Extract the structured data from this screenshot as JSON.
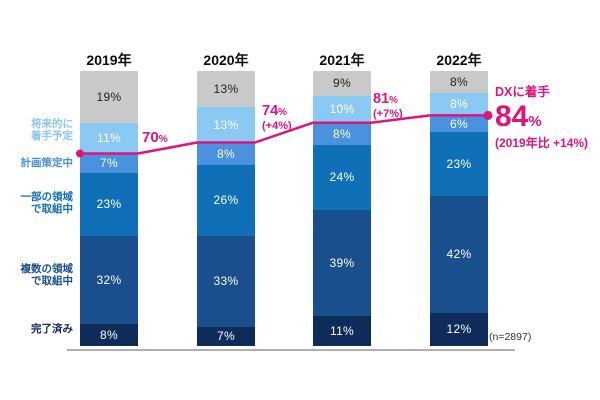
{
  "chart_data": {
    "type": "bar",
    "stacked": true,
    "categories": [
      "2019年",
      "2020年",
      "2021年",
      "2022年"
    ],
    "unit": "%",
    "ylim": [
      0,
      100
    ],
    "grid": false,
    "series_order": "top-to-bottom",
    "series": [
      {
        "name": "",
        "values": [
          19,
          13,
          9,
          8
        ]
      },
      {
        "name": "将来的に着手予定",
        "values": [
          11,
          13,
          10,
          8
        ]
      },
      {
        "name": "計画策定中",
        "values": [
          7,
          8,
          8,
          6
        ]
      },
      {
        "name": "一部の領域で取組中",
        "values": [
          23,
          26,
          24,
          23
        ]
      },
      {
        "name": "複数の領域で取組中",
        "values": [
          32,
          33,
          39,
          42
        ]
      },
      {
        "name": "完了済み",
        "values": [
          8,
          7,
          11,
          12
        ]
      }
    ],
    "line_series": {
      "name": "DXに着手",
      "values": [
        70,
        74,
        81,
        84
      ]
    },
    "sample_note": "(n=2897)"
  },
  "colors": {
    "segments": [
      "#c9c9c9",
      "#89c9f3",
      "#4a92e0",
      "#0f70b8",
      "#1a4f8e",
      "#0e2b59"
    ],
    "accent_pink": "#e0127c",
    "axis": "#b0b0b0",
    "label_colors": [
      "#8ac7f0",
      "#4a92e0",
      "#0f70b8",
      "#1a4f8e",
      "#0e2b59"
    ]
  },
  "left_labels": [
    {
      "lines": [
        "将来的に",
        "着手予定"
      ]
    },
    {
      "lines": [
        "計画策定中",
        ""
      ]
    },
    {
      "lines": [
        "一部の領域",
        "で取組中"
      ]
    },
    {
      "lines": [
        "複数の領域",
        "で取組中"
      ]
    },
    {
      "lines": [
        "完了済み",
        ""
      ]
    }
  ],
  "annotations": {
    "y2019": {
      "num": "70",
      "pct": "%"
    },
    "y2020": {
      "num": "74",
      "pct": "%",
      "delta": "(+4%)"
    },
    "y2021": {
      "num": "81",
      "pct": "%",
      "delta": "(+7%)"
    },
    "y2022": {
      "title": "DXに着手",
      "num": "84",
      "pct": "%",
      "note": "(2019年比 +14%)"
    }
  },
  "sample_size": "(n=2897)"
}
